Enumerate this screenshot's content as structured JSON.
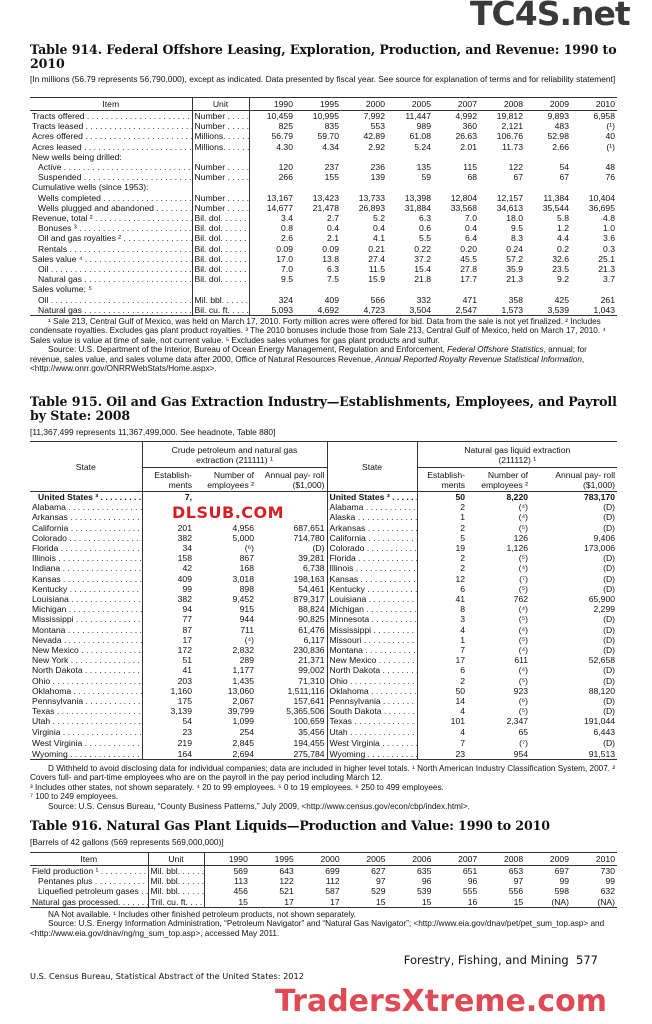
{
  "watermarks": {
    "top": "TC4S.net",
    "middle": "DLSUB.COM",
    "bottom": "TradersXtreme.com"
  },
  "t914": {
    "title": "Table 914. Federal Offshore Leasing, Exploration, Production, and Revenue: 1990 to 2010",
    "headnote": "[In millions (56.79 represents 56,790,000), except as indicated. Data presented by fiscal year. See source for explanation of terms and for reliability statement]",
    "columns": [
      "Item",
      "Unit",
      "1990",
      "1995",
      "2000",
      "2005",
      "2007",
      "2008",
      "2009",
      "2010"
    ],
    "rows": [
      {
        "item": "Tracts offered",
        "unit": "Number",
        "values": [
          "10,459",
          "10,995",
          "7,992",
          "11,447",
          "4,992",
          "19,812",
          "9,893",
          "6,958"
        ]
      },
      {
        "item": "Tracts leased",
        "unit": "Number",
        "values": [
          "825",
          "835",
          "553",
          "989",
          "360",
          "2,121",
          "483",
          "(¹)"
        ]
      },
      {
        "item": "Acres offered",
        "unit": "Millions.",
        "values": [
          "56.79",
          "59.70",
          "42.89",
          "61.08",
          "26.63",
          "106.76",
          "52.98",
          "40"
        ]
      },
      {
        "item": "Acres leased",
        "unit": "Millions.",
        "values": [
          "4.30",
          "4.34",
          "2.92",
          "5.24",
          "2.01",
          "11.73",
          "2.66",
          "(¹)"
        ]
      },
      {
        "item": "New wells being drilled:",
        "header": true
      },
      {
        "item": "Active",
        "indent": true,
        "unit": "Number",
        "values": [
          "120",
          "237",
          "236",
          "135",
          "115",
          "122",
          "54",
          "48"
        ]
      },
      {
        "item": "Suspended",
        "indent": true,
        "unit": "Number",
        "values": [
          "266",
          "155",
          "139",
          "59",
          "68",
          "67",
          "67",
          "76"
        ]
      },
      {
        "item": "Cumulative wells (since 1953):",
        "header": true
      },
      {
        "item": "Wells completed",
        "indent": true,
        "unit": "Number",
        "values": [
          "13,167",
          "13,423",
          "13,733",
          "13,398",
          "12,804",
          "12,157",
          "11,384",
          "10,404"
        ]
      },
      {
        "item": "Wells plugged and abandoned",
        "indent": true,
        "unit": "Number",
        "values": [
          "14,677",
          "21,478",
          "26,893",
          "31,884",
          "33,568",
          "34,613",
          "35,544",
          "36,695"
        ]
      },
      {
        "item": "Revenue, total ²",
        "unit": "Bil. dol.",
        "values": [
          "3.4",
          "2.7",
          "5.2",
          "6.3",
          "7.0",
          "18.0",
          "5.8",
          "4.8"
        ]
      },
      {
        "item": "Bonuses ³",
        "indent": true,
        "unit": "Bil. dol.",
        "values": [
          "0.8",
          "0.4",
          "0.4",
          "0.6",
          "0.4",
          "9.5",
          "1.2",
          "1.0"
        ]
      },
      {
        "item": "Oil and gas royalties ²",
        "indent": true,
        "unit": "Bil. dol.",
        "values": [
          "2.6",
          "2.1",
          "4.1",
          "5.5",
          "6.4",
          "8.3",
          "4.4",
          "3.6"
        ]
      },
      {
        "item": "Rentals",
        "indent": true,
        "unit": "Bil. dol.",
        "values": [
          "0.09",
          "0.09",
          "0.21",
          "0.22",
          "0.20",
          "0.24",
          "0.2",
          "0.3"
        ]
      },
      {
        "item": "Sales value ⁴",
        "unit": "Bil. dol.",
        "values": [
          "17.0",
          "13.8",
          "27.4",
          "37.2",
          "45.5",
          "57.2",
          "32.6",
          "25.1"
        ]
      },
      {
        "item": "Oil",
        "indent": true,
        "unit": "Bil. dol.",
        "values": [
          "7.0",
          "6.3",
          "11.5",
          "15.4",
          "27.8",
          "35.9",
          "23.5",
          "21.3"
        ]
      },
      {
        "item": "Natural gas",
        "indent": true,
        "unit": "Bil. dol.",
        "values": [
          "9.5",
          "7.5",
          "15.9",
          "21.8",
          "17.7",
          "21.3",
          "9.2",
          "3.7"
        ]
      },
      {
        "item": "Sales volume: ⁵",
        "header": true
      },
      {
        "item": "Oil",
        "indent": true,
        "unit": "Mil. bbl.",
        "values": [
          "324",
          "409",
          "566",
          "332",
          "471",
          "358",
          "425",
          "261"
        ]
      },
      {
        "item": "Natural gas",
        "indent": true,
        "unit": "Bil. cu. ft.",
        "values": [
          "5,093",
          "4,692",
          "4,723",
          "3,504",
          "2,547",
          "1,573",
          "3,539",
          "1,043"
        ]
      }
    ],
    "footnotes": "¹ Sale 213, Central Gulf of Mexico, was held on March 17, 2010. Forty million acres were offered for bid. Data from the sale is not yet finalized. ² Includes condensate royalties. Excludes gas plant product royalties. ³ The 2010 bonuses include those from Sale 213, Central Gulf of Mexico, held on March 17, 2010. ⁴ Sales value is value at time of sale, not current value. ⁵ Excludes sales volumes for gas plant products and sulfur.",
    "source_a": "Source: U.S. Department of the Interior, Bureau of Ocean Energy Management, Regulation and Enforcement, ",
    "source_i1": "Federal Offshore Statistics",
    "source_b": ", annual; for revenue, sales value, and sales volume data after 2000, Office of Natural Resources Revenue, ",
    "source_i2": "Annual Reported Royalty Revenue Statistical Information",
    "source_c": ", <http://www.onrr.gov/ONRRWebStats/Home.aspx>."
  },
  "t915": {
    "title": "Table 915. Oil and Gas Extraction Industry—Establishments, Employees, and Payroll by State: 2008",
    "headnote": "[11,367,499 represents 11,367,499,000. See headnote, Table 880]",
    "state_header": "State",
    "group_left": "Crude petroleum and natural gas extraction (211111) ¹",
    "group_right": "Natural gas liquid extraction (211112) ¹",
    "col_est": "Establish- ments",
    "col_emp": "Number of employees ²",
    "col_pay": "Annual pay- roll ($1,000)",
    "rows": [
      {
        "l": [
          "United States ³",
          "7,",
          "",
          ""
        ],
        "r": [
          "United States ³",
          "50",
          "8,220",
          "783,170"
        ]
      },
      {
        "l": [
          "Alabama",
          "",
          "",
          ""
        ],
        "r": [
          "Alabama",
          "2",
          "(⁴)",
          "(D)"
        ]
      },
      {
        "l": [
          "Arkansas",
          "",
          "",
          ""
        ],
        "r": [
          "Alaska",
          "1",
          "(⁴)",
          "(D)"
        ]
      },
      {
        "l": [
          "California",
          "201",
          "4,956",
          "687,651"
        ],
        "r": [
          "Arkansas",
          "2",
          "(⁵)",
          "(D)"
        ]
      },
      {
        "l": [
          "Colorado",
          "382",
          "5,000",
          "714,780"
        ],
        "r": [
          "California",
          "5",
          "126",
          "9,406"
        ]
      },
      {
        "l": [
          "Florida",
          "34",
          "(⁶)",
          "(D)"
        ],
        "r": [
          "Colorado",
          "19",
          "1,126",
          "173,006"
        ]
      },
      {
        "l": [
          "Illinois",
          "158",
          "867",
          "39,281"
        ],
        "r": [
          "Florida",
          "2",
          "(⁵)",
          "(D)"
        ]
      },
      {
        "l": [
          "Indiana",
          "42",
          "168",
          "6,738"
        ],
        "r": [
          "Illinois",
          "2",
          "(⁴)",
          "(D)"
        ]
      },
      {
        "l": [
          "Kansas",
          "409",
          "3,018",
          "198,163"
        ],
        "r": [
          "Kansas",
          "12",
          "(⁷)",
          "(D)"
        ]
      },
      {
        "l": [
          "Kentucky",
          "99",
          "898",
          "54,461"
        ],
        "r": [
          "Kentucky",
          "6",
          "(⁵)",
          "(D)"
        ]
      },
      {
        "l": [
          "Louisiana",
          "382",
          "9,452",
          "879,317"
        ],
        "r": [
          "Louisiana",
          "41",
          "762",
          "65,900"
        ]
      },
      {
        "l": [
          "Michigan",
          "94",
          "915",
          "88,824"
        ],
        "r": [
          "Michigan",
          "8",
          "(⁴)",
          "2,299"
        ]
      },
      {
        "l": [
          "Mississippi",
          "77",
          "944",
          "90,825"
        ],
        "r": [
          "Minnesota",
          "3",
          "(⁵)",
          "(D)"
        ]
      },
      {
        "l": [
          "Montana",
          "87",
          "711",
          "61,476"
        ],
        "r": [
          "Mississippi",
          "4",
          "(⁴)",
          "(D)"
        ]
      },
      {
        "l": [
          "Nevada",
          "17",
          "(⁴)",
          "6,117"
        ],
        "r": [
          "Missouri",
          "1",
          "(⁵)",
          "(D)"
        ]
      },
      {
        "l": [
          "New Mexico",
          "172",
          "2,832",
          "230,836"
        ],
        "r": [
          "Montana",
          "7",
          "(⁴)",
          "(D)"
        ]
      },
      {
        "l": [
          "New York",
          "51",
          "289",
          "21,371"
        ],
        "r": [
          "New Mexico",
          "17",
          "611",
          "52,658"
        ]
      },
      {
        "l": [
          "North Dakota",
          "41",
          "1,177",
          "99,002"
        ],
        "r": [
          "North Dakota",
          "6",
          "(⁴)",
          "(D)"
        ]
      },
      {
        "l": [
          "Ohio",
          "203",
          "1,435",
          "71,310"
        ],
        "r": [
          "Ohio",
          "2",
          "(⁵)",
          "(D)"
        ]
      },
      {
        "l": [
          "Oklahoma",
          "1,160",
          "13,060",
          "1,511,116"
        ],
        "r": [
          "Oklahoma",
          "50",
          "923",
          "88,120"
        ]
      },
      {
        "l": [
          "Pennsylvania",
          "175",
          "2,067",
          "157,641"
        ],
        "r": [
          "Pennsylvania",
          "14",
          "(⁶)",
          "(D)"
        ]
      },
      {
        "l": [
          "Texas",
          "3,139",
          "39,799",
          "5,365,506"
        ],
        "r": [
          "South Dakota",
          "4",
          "(⁵)",
          "(D)"
        ]
      },
      {
        "l": [
          "Utah",
          "54",
          "1,099",
          "100,659"
        ],
        "r": [
          "Texas",
          "101",
          "2,347",
          "191,044"
        ]
      },
      {
        "l": [
          "Virginia",
          "23",
          "254",
          "35,456"
        ],
        "r": [
          "Utah",
          "4",
          "65",
          "6,443"
        ]
      },
      {
        "l": [
          "West Virginia",
          "219",
          "2,845",
          "194,455"
        ],
        "r": [
          "West Virginia",
          "7",
          "(⁷)",
          "(D)"
        ]
      },
      {
        "l": [
          "Wyoming",
          "164",
          "2,694",
          "275,784"
        ],
        "r": [
          "Wyoming",
          "23",
          "954",
          "91,513"
        ]
      }
    ],
    "footnotes": "D Withheld to avoid disclosing data for individual companies; data are included in higher level totals. ¹ North American Industry Classification System, 2007. ² Covers full- and part-time employees who are on the payroll in the pay period including March 12.",
    "footnotes2": "³ Includes other states, not shown separately. ⁴ 20 to 99 employees. ⁵ 0 to 19 employees. ⁶ 250 to 499 employees.",
    "footnotes3": "⁷ 100 to 249 employees.",
    "source": "Source: U.S. Census Bureau, “County Business Patterns,” July 2009, <http://www.census.gov/econ/cbp/index.html>."
  },
  "t916": {
    "title": "Table 916. Natural Gas Plant Liquids—Production and Value: 1990 to 2010",
    "headnote": "[Barrels of 42 gallons (569 represents 569,000,000)]",
    "columns": [
      "Item",
      "Unit",
      "1990",
      "1995",
      "2000",
      "2005",
      "2006",
      "2007",
      "2008",
      "2009",
      "2010"
    ],
    "rows": [
      {
        "item": "Field production ¹",
        "unit": "Mil. bbl.",
        "values": [
          "569",
          "643",
          "699",
          "627",
          "635",
          "651",
          "653",
          "697",
          "730"
        ]
      },
      {
        "item": "Pentanes plus",
        "indent": true,
        "unit": "Mil. bbl.",
        "values": [
          "113",
          "122",
          "112",
          "97",
          "96",
          "96",
          "97",
          "99",
          "99"
        ]
      },
      {
        "item": "Liquefied petroleum gases",
        "indent": true,
        "unit": "Mil. bbl.",
        "values": [
          "456",
          "521",
          "587",
          "529",
          "539",
          "555",
          "556",
          "598",
          "632"
        ]
      },
      {
        "item": "Natural gas processed.",
        "unit": "Tril. cu. ft.",
        "values": [
          "15",
          "17",
          "17",
          "15",
          "15",
          "16",
          "15",
          "(NA)",
          "(NA)"
        ]
      }
    ],
    "footnotes": "NA Not available. ¹ Includes other finished petroleum products, not shown separately.",
    "source": "Source: U.S. Energy Information Administration, “Petroleum Navigator” and “Natural Gas Navigator”; <http://www.eia.gov/dnav/pet/pet_sum_top.asp> and <http://www.eia.gov/dnav/ng/ng_sum_top.asp>, accessed May 2011."
  },
  "footer": {
    "section": "Forestry, Fishing, and Mining",
    "page": "577",
    "publication": "U.S. Census Bureau, Statistical Abstract of the United States: 2012"
  }
}
